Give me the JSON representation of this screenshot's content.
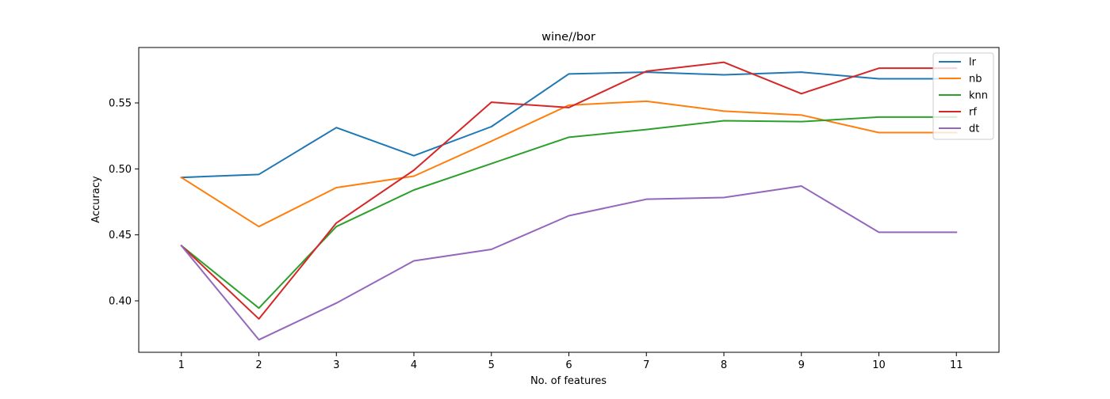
{
  "chart_data": {
    "type": "line",
    "title": "wine//bor",
    "xlabel": "No. of features",
    "ylabel": "Accuracy",
    "x": [
      1,
      2,
      3,
      4,
      5,
      6,
      7,
      8,
      9,
      10,
      11
    ],
    "xlim": [
      0.45,
      11.55
    ],
    "ylim": [
      0.361,
      0.592
    ],
    "yticks": [
      "0.40",
      "0.45",
      "0.50",
      "0.55"
    ],
    "ytick_values": [
      0.4,
      0.45,
      0.5,
      0.55
    ],
    "grid": false,
    "legend_position": "upper right",
    "series": [
      {
        "name": "lr",
        "color": "#1f77b4",
        "values": [
          0.4935,
          0.4958,
          0.5313,
          0.51,
          0.532,
          0.572,
          0.5733,
          0.5713,
          0.5733,
          0.5683,
          0.5683
        ]
      },
      {
        "name": "nb",
        "color": "#ff7f0e",
        "values": [
          0.4935,
          0.4563,
          0.4858,
          0.4945,
          0.521,
          0.5483,
          0.5513,
          0.5438,
          0.5408,
          0.5275,
          0.5275
        ]
      },
      {
        "name": "knn",
        "color": "#2ca02c",
        "values": [
          0.4418,
          0.3945,
          0.4563,
          0.484,
          0.504,
          0.524,
          0.5298,
          0.5365,
          0.5358,
          0.5393,
          0.5393
        ]
      },
      {
        "name": "rf",
        "color": "#d62728",
        "values": [
          0.4418,
          0.3863,
          0.459,
          0.499,
          0.5505,
          0.5465,
          0.574,
          0.5808,
          0.557,
          0.5763,
          0.5763
        ]
      },
      {
        "name": "dt",
        "color": "#9467bd",
        "values": [
          0.4418,
          0.3705,
          0.3983,
          0.4303,
          0.439,
          0.4645,
          0.477,
          0.4783,
          0.487,
          0.452,
          0.452
        ]
      }
    ]
  }
}
